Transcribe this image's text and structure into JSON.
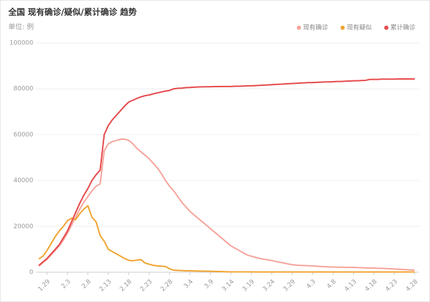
{
  "chart_data": {
    "type": "line",
    "title": "全国 现有确诊/疑似/累计确诊 趋势",
    "unit_label": "单位: 例",
    "categories": [
      null,
      null,
      "1.29",
      null,
      null,
      null,
      null,
      "2.3",
      null,
      null,
      null,
      null,
      "2.8",
      null,
      null,
      null,
      null,
      "2.13",
      null,
      null,
      null,
      null,
      "2.18",
      null,
      null,
      null,
      null,
      "2.23",
      null,
      null,
      null,
      null,
      "2.28",
      null,
      null,
      null,
      null,
      "3.4",
      null,
      null,
      null,
      null,
      "3.9",
      null,
      null,
      null,
      null,
      "3.14",
      null,
      null,
      null,
      null,
      "3.19",
      null,
      null,
      null,
      null,
      "3.24",
      null,
      null,
      null,
      null,
      "3.29",
      null,
      null,
      null,
      null,
      "4.3",
      null,
      null,
      null,
      null,
      "4.8",
      null,
      null,
      null,
      null,
      "4.13",
      null,
      null,
      null,
      null,
      "4.18",
      null,
      null,
      null,
      null,
      "4.23",
      null,
      null,
      null,
      null,
      "4.28"
    ],
    "series": [
      {
        "name": "现有确诊",
        "color": "#f6a29a",
        "values": [
          2700,
          4200,
          5600,
          7500,
          9500,
          11500,
          14000,
          17000,
          20500,
          24000,
          27500,
          30500,
          33000,
          35500,
          37500,
          38500,
          53000,
          56000,
          57000,
          57500,
          58000,
          58000,
          57500,
          56000,
          54000,
          52500,
          51000,
          49500,
          47500,
          45500,
          43000,
          40000,
          37500,
          35500,
          33000,
          30500,
          28500,
          26500,
          25000,
          23500,
          22000,
          20500,
          19000,
          17500,
          16000,
          14500,
          13000,
          11500,
          10500,
          9500,
          8500,
          7500,
          7000,
          6500,
          6000,
          5700,
          5400,
          5100,
          4700,
          4300,
          4000,
          3600,
          3300,
          3100,
          3000,
          2900,
          2800,
          2700,
          2600,
          2500,
          2400,
          2300,
          2300,
          2200,
          2200,
          2100,
          2100,
          2100,
          2000,
          2000,
          1900,
          1800,
          1800,
          1700,
          1700,
          1600,
          1500,
          1400,
          1300,
          1200,
          1100,
          1000,
          900
        ]
      },
      {
        "name": "现有疑似",
        "color": "#f0a32e",
        "values": [
          5800,
          7000,
          9500,
          12500,
          15500,
          18000,
          20000,
          22500,
          23500,
          23000,
          25500,
          27500,
          29000,
          24000,
          22000,
          16000,
          13500,
          10000,
          9000,
          8000,
          7000,
          6000,
          5200,
          5000,
          5300,
          5500,
          4000,
          3500,
          3000,
          2800,
          2600,
          2500,
          1500,
          900,
          800,
          700,
          600,
          600,
          550,
          500,
          500,
          450,
          400,
          350,
          300,
          250,
          200,
          150,
          150,
          150,
          150,
          150,
          150,
          100,
          100,
          100,
          100,
          100,
          100,
          100,
          100,
          100,
          100,
          100,
          100,
          100,
          100,
          100,
          100,
          100,
          100,
          100,
          100,
          100,
          100,
          100,
          100,
          100,
          100,
          100,
          100,
          100,
          100,
          100,
          100,
          100,
          100,
          100,
          100,
          100,
          100,
          100,
          100
        ]
      },
      {
        "name": "累计确诊",
        "color": "#e5484a",
        "values": [
          2900,
          4500,
          6000,
          8000,
          10000,
          12000,
          15000,
          18000,
          22000,
          26000,
          30000,
          33500,
          36500,
          40000,
          42500,
          44500,
          60000,
          64000,
          66500,
          68500,
          70500,
          72500,
          74200,
          75000,
          75800,
          76500,
          77000,
          77300,
          77800,
          78200,
          78600,
          79000,
          79300,
          80000,
          80200,
          80300,
          80500,
          80600,
          80700,
          80800,
          80850,
          80900,
          80900,
          80950,
          80950,
          81000,
          81000,
          81000,
          81100,
          81100,
          81200,
          81300,
          81300,
          81400,
          81500,
          81600,
          81700,
          81800,
          81900,
          82000,
          82100,
          82200,
          82300,
          82400,
          82500,
          82600,
          82700,
          82700,
          82800,
          82900,
          83000,
          83000,
          83100,
          83200,
          83200,
          83300,
          83400,
          83500,
          83500,
          83600,
          83700,
          84100,
          84100,
          84100,
          84200,
          84200,
          84200,
          84200,
          84300,
          84300,
          84300,
          84300,
          84300
        ]
      }
    ],
    "ylim": [
      0,
      100000
    ],
    "yticks": [
      0,
      20000,
      40000,
      60000,
      80000,
      100000
    ],
    "grid": true
  }
}
